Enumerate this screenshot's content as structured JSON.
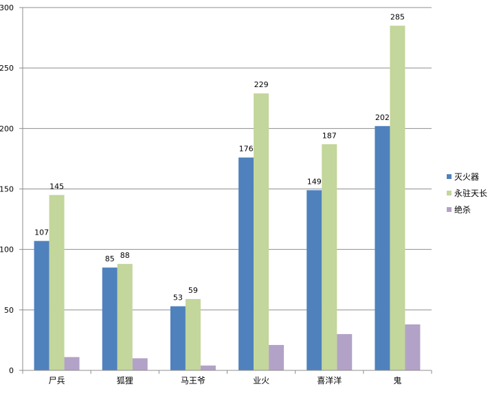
{
  "chart_data": {
    "type": "bar",
    "title": "",
    "xlabel": "",
    "ylabel": "",
    "ylim": [
      0,
      300
    ],
    "yticks": [
      0,
      50,
      100,
      150,
      200,
      250,
      300
    ],
    "grid": true,
    "legend_position": "right",
    "categories": [
      "尸兵",
      "狐狸",
      "马王爷",
      "业火",
      "喜洋洋",
      "鬼"
    ],
    "series": [
      {
        "name": "灭火器",
        "color": "#4F81BD",
        "values": [
          107,
          85,
          53,
          176,
          149,
          202
        ],
        "labels_shown": true
      },
      {
        "name": "永驻天长",
        "color": "#C3D69B",
        "values": [
          145,
          88,
          59,
          229,
          187,
          285
        ],
        "labels_shown": true
      },
      {
        "name": "绝杀",
        "color": "#B3A2C7",
        "values": [
          11,
          10,
          4,
          21,
          30,
          38
        ],
        "labels_shown": false
      }
    ]
  }
}
